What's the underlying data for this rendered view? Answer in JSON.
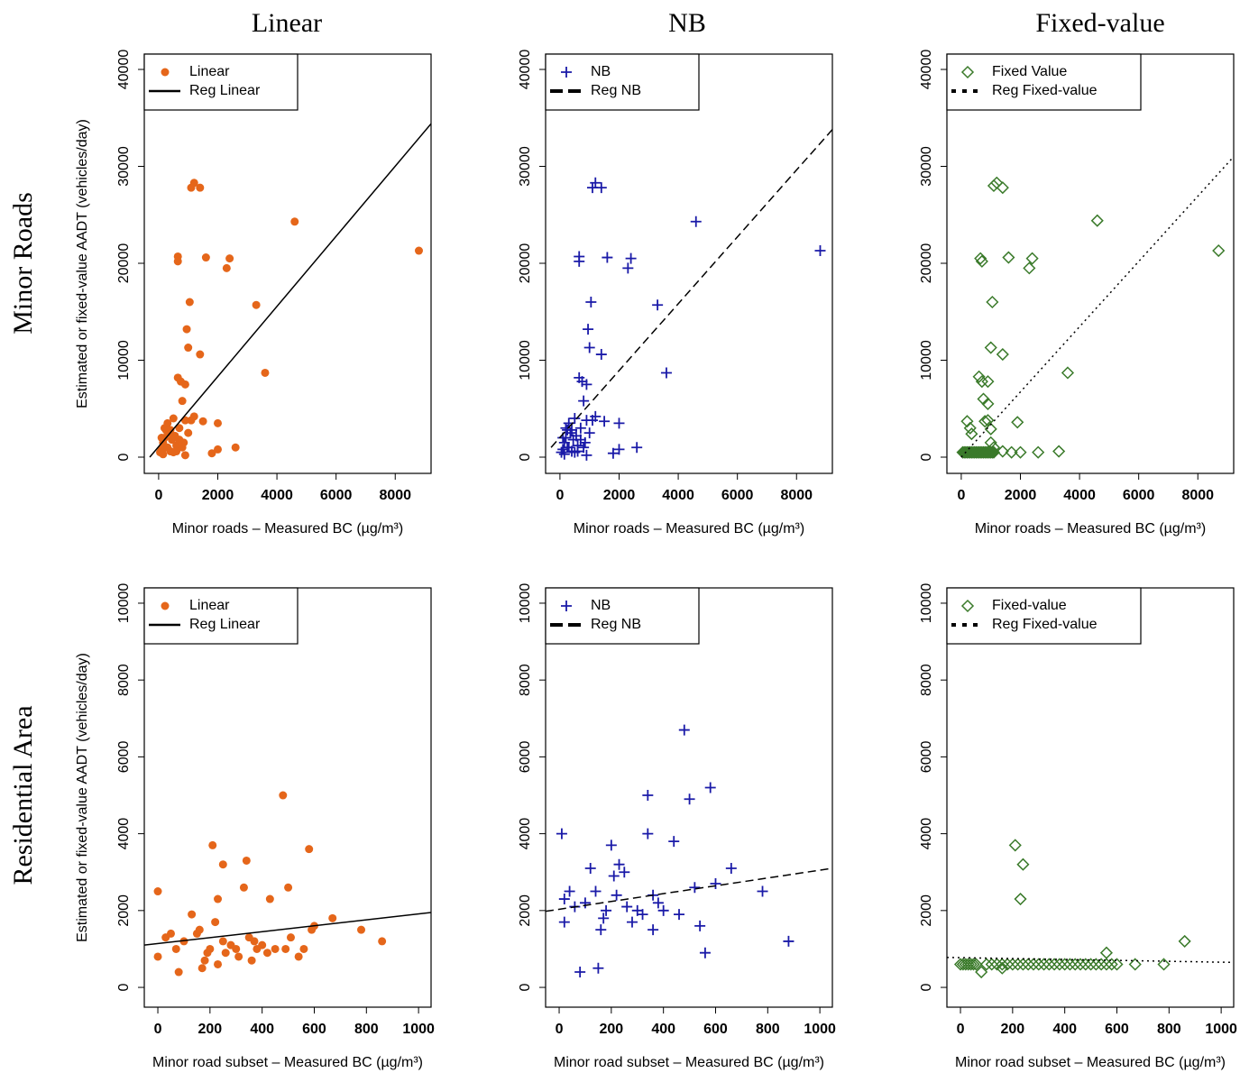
{
  "column_titles": [
    "Linear",
    "NB",
    "Fixed-value"
  ],
  "row_titles": [
    "Minor Roads",
    "Residential Area"
  ],
  "chart_data": [
    {
      "type": "scatter",
      "xlabel": "Minor roads – Measured BC (µg/m³)",
      "ylabel": "Estimated or fixed-value AADT (vehicles/day)",
      "xlim": [
        -485,
        9212
      ],
      "ylim": [
        -1674,
        41581
      ],
      "xticks": [
        0,
        2000,
        4000,
        6000,
        8000
      ],
      "yticks": [
        0,
        10000,
        20000,
        30000,
        40000
      ],
      "legend": "upper left",
      "series": [
        {
          "name": "Linear",
          "color": "#e5661a",
          "marker": "circle",
          "x": [
            50,
            100,
            150,
            200,
            250,
            300,
            350,
            400,
            450,
            500,
            550,
            600,
            650,
            700,
            750,
            800,
            850,
            900,
            950,
            1000,
            1050,
            1100,
            1200,
            1400,
            650,
            650,
            1600,
            2300,
            2400,
            1400,
            3300,
            3600,
            4600,
            8800,
            1200,
            1500,
            2000,
            2000,
            1800,
            2600,
            900,
            1000,
            1100,
            200,
            300,
            400,
            600,
            700,
            100,
            150,
            250,
            500,
            800,
            900
          ],
          "values": [
            500,
            800,
            1500,
            2000,
            1000,
            3500,
            2500,
            600,
            1800,
            4000,
            2200,
            1200,
            8200,
            3000,
            7800,
            5800,
            1500,
            7500,
            13200,
            11300,
            16000,
            27800,
            28300,
            27800,
            20700,
            20200,
            20600,
            19500,
            20500,
            10600,
            15700,
            8700,
            24300,
            21300,
            4200,
            3700,
            3500,
            800,
            400,
            1000,
            200,
            2500,
            3800,
            3000,
            1000,
            2800,
            600,
            1800,
            2000,
            300,
            2800,
            500,
            1000,
            3800
          ]
        },
        {
          "name": "Reg Linear",
          "color": "#000000",
          "type": "line",
          "dash": "solid",
          "x": [
            -300,
            9212
          ],
          "values": [
            0,
            34400
          ]
        }
      ]
    },
    {
      "type": "scatter",
      "xlabel": "Minor roads – Measured BC (µg/m³)",
      "xlim": [
        -485,
        9212
      ],
      "ylim": [
        -1674,
        41581
      ],
      "xticks": [
        0,
        2000,
        4000,
        6000,
        8000
      ],
      "yticks": [
        0,
        10000,
        20000,
        30000,
        40000
      ],
      "legend": "upper left",
      "series": [
        {
          "name": "NB",
          "color": "#1a1aa8",
          "marker": "plus",
          "x": [
            50,
            100,
            150,
            200,
            250,
            300,
            350,
            400,
            450,
            500,
            550,
            600,
            650,
            700,
            750,
            800,
            850,
            900,
            950,
            1000,
            1050,
            1100,
            1200,
            1400,
            650,
            650,
            1600,
            2300,
            2400,
            1400,
            3300,
            3600,
            4600,
            8800,
            1200,
            1500,
            2000,
            2000,
            1800,
            2600,
            900,
            1000,
            1100,
            200,
            300,
            400,
            600,
            700,
            100,
            150,
            250,
            500,
            800,
            900
          ],
          "values": [
            500,
            800,
            1500,
            2000,
            1000,
            3500,
            2500,
            600,
            1800,
            4000,
            2200,
            1200,
            8200,
            3000,
            7800,
            5800,
            1500,
            7500,
            13200,
            11300,
            16000,
            27800,
            28300,
            27800,
            20700,
            20200,
            20600,
            19500,
            20500,
            10600,
            15700,
            8700,
            24300,
            21300,
            4200,
            3700,
            3500,
            800,
            400,
            1000,
            200,
            2500,
            3800,
            3000,
            1000,
            2800,
            600,
            1800,
            2000,
            300,
            2800,
            500,
            1000,
            3800
          ]
        },
        {
          "name": "Reg NB",
          "color": "#000000",
          "type": "line",
          "dash": "dashed",
          "x": [
            -300,
            9212
          ],
          "values": [
            1000,
            33800
          ]
        }
      ]
    },
    {
      "type": "scatter",
      "xlabel": "Minor roads – Measured BC (µg/m³)",
      "xlim": [
        -485,
        9212
      ],
      "ylim": [
        -1674,
        41581
      ],
      "xticks": [
        0,
        2000,
        4000,
        6000,
        8000
      ],
      "yticks": [
        0,
        10000,
        20000,
        30000,
        40000
      ],
      "legend": "upper left",
      "series": [
        {
          "name": "Fixed Value",
          "color": "#3a7a2a",
          "marker": "diamond",
          "x": [
            50,
            100,
            150,
            200,
            250,
            300,
            350,
            400,
            450,
            500,
            550,
            600,
            650,
            700,
            750,
            800,
            850,
            900,
            950,
            1000,
            1050,
            1100,
            1100,
            1200,
            1400,
            650,
            700,
            1600,
            2300,
            2400,
            1050,
            1000,
            1400,
            600,
            700,
            900,
            750,
            900,
            800,
            900,
            1000,
            200,
            300,
            350,
            4600,
            3600,
            8700,
            1900,
            2600,
            3300,
            1700,
            2000,
            1400,
            1000,
            1100
          ],
          "values": [
            500,
            500,
            500,
            500,
            500,
            500,
            500,
            500,
            500,
            500,
            500,
            500,
            500,
            500,
            500,
            500,
            500,
            500,
            500,
            500,
            500,
            500,
            28000,
            28300,
            27800,
            20500,
            20200,
            20600,
            19500,
            20500,
            16000,
            11300,
            10600,
            8300,
            7800,
            7800,
            6000,
            5500,
            3700,
            3800,
            2900,
            3700,
            3000,
            2400,
            24400,
            8700,
            21300,
            3600,
            500,
            600,
            500,
            500,
            600,
            1500,
            1000
          ]
        },
        {
          "name": "Reg Fixed-value",
          "color": "#000000",
          "type": "line",
          "dash": "dotted",
          "x": [
            0,
            9212
          ],
          "values": [
            0,
            31000
          ]
        }
      ]
    },
    {
      "type": "scatter",
      "xlabel": "Minor road subset – Measured BC (µg/m³)",
      "ylabel": "Estimated or fixed-value AADT (vehicles/day)",
      "xlim": [
        -52,
        1048
      ],
      "ylim": [
        -515,
        10398
      ],
      "xticks": [
        0,
        200,
        400,
        600,
        800,
        1000
      ],
      "yticks": [
        0,
        2000,
        4000,
        6000,
        8000,
        10000
      ],
      "legend": "upper left",
      "series": [
        {
          "name": "Linear",
          "color": "#e5661a",
          "marker": "circle",
          "x": [
            0,
            0,
            30,
            50,
            70,
            80,
            100,
            130,
            150,
            160,
            170,
            180,
            190,
            200,
            210,
            220,
            230,
            230,
            250,
            250,
            260,
            280,
            300,
            310,
            330,
            340,
            350,
            360,
            370,
            380,
            400,
            420,
            430,
            450,
            480,
            490,
            500,
            510,
            540,
            560,
            580,
            590,
            600,
            670,
            780,
            860
          ],
          "values": [
            2500,
            800,
            1300,
            1400,
            1000,
            400,
            1200,
            1900,
            1400,
            1500,
            500,
            700,
            900,
            1000,
            3700,
            1700,
            2300,
            600,
            3200,
            1200,
            900,
            1100,
            1000,
            800,
            2600,
            3300,
            1300,
            700,
            1200,
            1000,
            1100,
            900,
            2300,
            1000,
            5000,
            1000,
            2600,
            1300,
            800,
            1000,
            3600,
            1500,
            1600,
            1800,
            1500,
            1200
          ]
        },
        {
          "name": "Reg Linear",
          "color": "#000000",
          "type": "line",
          "dash": "solid",
          "x": [
            -52,
            1048
          ],
          "values": [
            1100,
            1950
          ]
        }
      ]
    },
    {
      "type": "scatter",
      "xlabel": "Minor road subset – Measured BC (µg/m³)",
      "xlim": [
        -52,
        1048
      ],
      "ylim": [
        -515,
        10398
      ],
      "xticks": [
        0,
        200,
        400,
        600,
        800,
        1000
      ],
      "yticks": [
        0,
        2000,
        4000,
        6000,
        8000,
        10000
      ],
      "legend": "upper left",
      "series": [
        {
          "name": "NB",
          "color": "#1a1aa8",
          "marker": "plus",
          "x": [
            10,
            20,
            40,
            60,
            80,
            100,
            120,
            140,
            150,
            160,
            170,
            180,
            200,
            210,
            220,
            230,
            250,
            260,
            280,
            300,
            320,
            340,
            340,
            360,
            360,
            380,
            400,
            440,
            460,
            480,
            500,
            520,
            540,
            560,
            580,
            600,
            660,
            780,
            880,
            20
          ],
          "values": [
            4000,
            2300,
            2500,
            2100,
            400,
            2200,
            3100,
            2500,
            500,
            1500,
            1800,
            2000,
            3700,
            2900,
            2400,
            3200,
            3000,
            2100,
            1700,
            2000,
            1900,
            5000,
            4000,
            2400,
            1500,
            2200,
            2000,
            3800,
            1900,
            6700,
            4900,
            2600,
            1600,
            900,
            5200,
            2700,
            3100,
            2500,
            1200,
            1700
          ]
        },
        {
          "name": "Reg NB",
          "color": "#000000",
          "type": "line",
          "dash": "dashed",
          "x": [
            -52,
            1048
          ],
          "values": [
            1980,
            3100
          ]
        }
      ]
    },
    {
      "type": "scatter",
      "xlabel": "Minor road subset – Measured BC (µg/m³)",
      "xlim": [
        -52,
        1048
      ],
      "ylim": [
        -515,
        10398
      ],
      "xticks": [
        0,
        200,
        400,
        600,
        800,
        1000
      ],
      "yticks": [
        0,
        2000,
        4000,
        6000,
        8000,
        10000
      ],
      "legend": "upper left",
      "series": [
        {
          "name": "Fixed-value",
          "color": "#3a7a2a",
          "marker": "diamond",
          "x": [
            0,
            10,
            20,
            30,
            40,
            50,
            60,
            100,
            120,
            140,
            160,
            180,
            200,
            220,
            240,
            260,
            280,
            300,
            320,
            340,
            360,
            380,
            400,
            420,
            440,
            460,
            480,
            500,
            520,
            540,
            560,
            580,
            600,
            210,
            240,
            230,
            560,
            860,
            780,
            670,
            80,
            160
          ],
          "values": [
            600,
            600,
            600,
            600,
            600,
            600,
            600,
            600,
            600,
            600,
            600,
            600,
            600,
            600,
            600,
            600,
            600,
            600,
            600,
            600,
            600,
            600,
            600,
            600,
            600,
            600,
            600,
            600,
            600,
            600,
            600,
            600,
            600,
            3700,
            3200,
            2300,
            900,
            1200,
            600,
            600,
            400,
            500
          ]
        },
        {
          "name": "Reg Fixed-value",
          "color": "#000000",
          "type": "line",
          "dash": "dotted",
          "x": [
            -52,
            1048
          ],
          "values": [
            780,
            650
          ]
        }
      ]
    }
  ]
}
